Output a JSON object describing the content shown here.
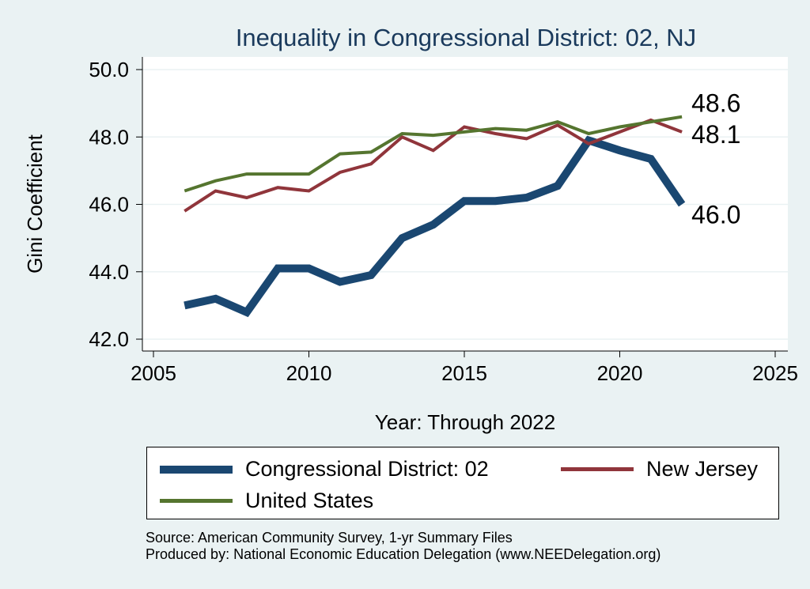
{
  "colors": {
    "district": "#1a4771",
    "state": "#90353b",
    "us": "#55752f",
    "plot_bg": "#ffffff",
    "page_bg": "#eaf2f3",
    "grid": "#eaf2f3",
    "title": "#1a3a5c"
  },
  "chart_data": {
    "type": "line",
    "title": "Inequality in Congressional District:  02, NJ",
    "xlabel": "Year: Through 2022",
    "ylabel": "Gini Coefficient",
    "xlim": [
      2005,
      2025
    ],
    "ylim": [
      42.0,
      50.0
    ],
    "x_ticks": [
      "2005",
      "2010",
      "2015",
      "2020",
      "2025"
    ],
    "y_ticks": [
      "42.0",
      "44.0",
      "46.0",
      "48.0",
      "50.0"
    ],
    "grid": true,
    "legend_position": "bottom",
    "x": [
      2006,
      2007,
      2008,
      2009,
      2010,
      2011,
      2012,
      2013,
      2014,
      2015,
      2016,
      2017,
      2018,
      2019,
      2020,
      2021,
      2022
    ],
    "series": [
      {
        "name": "Congressional District:  02",
        "values": [
          43.0,
          43.2,
          42.8,
          44.1,
          44.1,
          43.7,
          43.9,
          45.0,
          45.4,
          46.1,
          46.1,
          46.2,
          46.55,
          47.9,
          47.6,
          47.35,
          46.0
        ],
        "end_label": "46.0"
      },
      {
        "name": "New Jersey",
        "values": [
          45.8,
          46.4,
          46.2,
          46.5,
          46.4,
          46.95,
          47.2,
          48.0,
          47.6,
          48.3,
          48.1,
          47.95,
          48.35,
          47.8,
          48.15,
          48.5,
          48.15
        ],
        "end_label": "48.1"
      },
      {
        "name": "United States",
        "values": [
          46.4,
          46.7,
          46.9,
          46.9,
          46.9,
          47.5,
          47.55,
          48.1,
          48.05,
          48.15,
          48.25,
          48.2,
          48.45,
          48.1,
          48.3,
          48.45,
          48.6
        ],
        "end_label": "48.6"
      }
    ]
  },
  "source": {
    "line1": "Source: American Community Survey, 1-yr Summary Files",
    "line2": "Produced by: National Economic Education Delegation (www.NEEDelegation.org)"
  }
}
